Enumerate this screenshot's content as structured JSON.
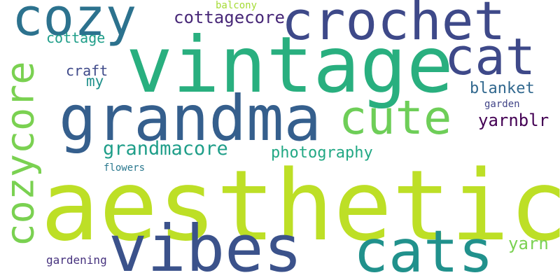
{
  "words": [
    {
      "text": "aesthetic",
      "color": "#bddf26"
    },
    {
      "text": "vintage",
      "color": "#29af7f"
    },
    {
      "text": "grandma",
      "color": "#355f8d"
    },
    {
      "text": "vibes",
      "color": "#3b528b"
    },
    {
      "text": "cats",
      "color": "#21918c"
    },
    {
      "text": "crochet",
      "color": "#3e4989"
    },
    {
      "text": "cozy",
      "color": "#2c728e"
    },
    {
      "text": "cat",
      "color": "#3e4989"
    },
    {
      "text": "cute",
      "color": "#6ece58"
    },
    {
      "text": "cozycore",
      "color": "#7ad151"
    },
    {
      "text": "grandmacore",
      "color": "#1f9e89"
    },
    {
      "text": "cottagecore",
      "color": "#482878"
    },
    {
      "text": "blanket",
      "color": "#31688e"
    },
    {
      "text": "yarnblr",
      "color": "#440154"
    },
    {
      "text": "photography",
      "color": "#22a884"
    },
    {
      "text": "yarn",
      "color": "#7ad151"
    },
    {
      "text": "cottage",
      "color": "#1f9e89"
    },
    {
      "text": "craft",
      "color": "#3e4989"
    },
    {
      "text": "my",
      "color": "#21918c"
    },
    {
      "text": "gardening",
      "color": "#46327e"
    },
    {
      "text": "balcony",
      "color": "#a5db36"
    },
    {
      "text": "garden",
      "color": "#414487"
    },
    {
      "text": "flowers",
      "color": "#2a788e"
    }
  ]
}
